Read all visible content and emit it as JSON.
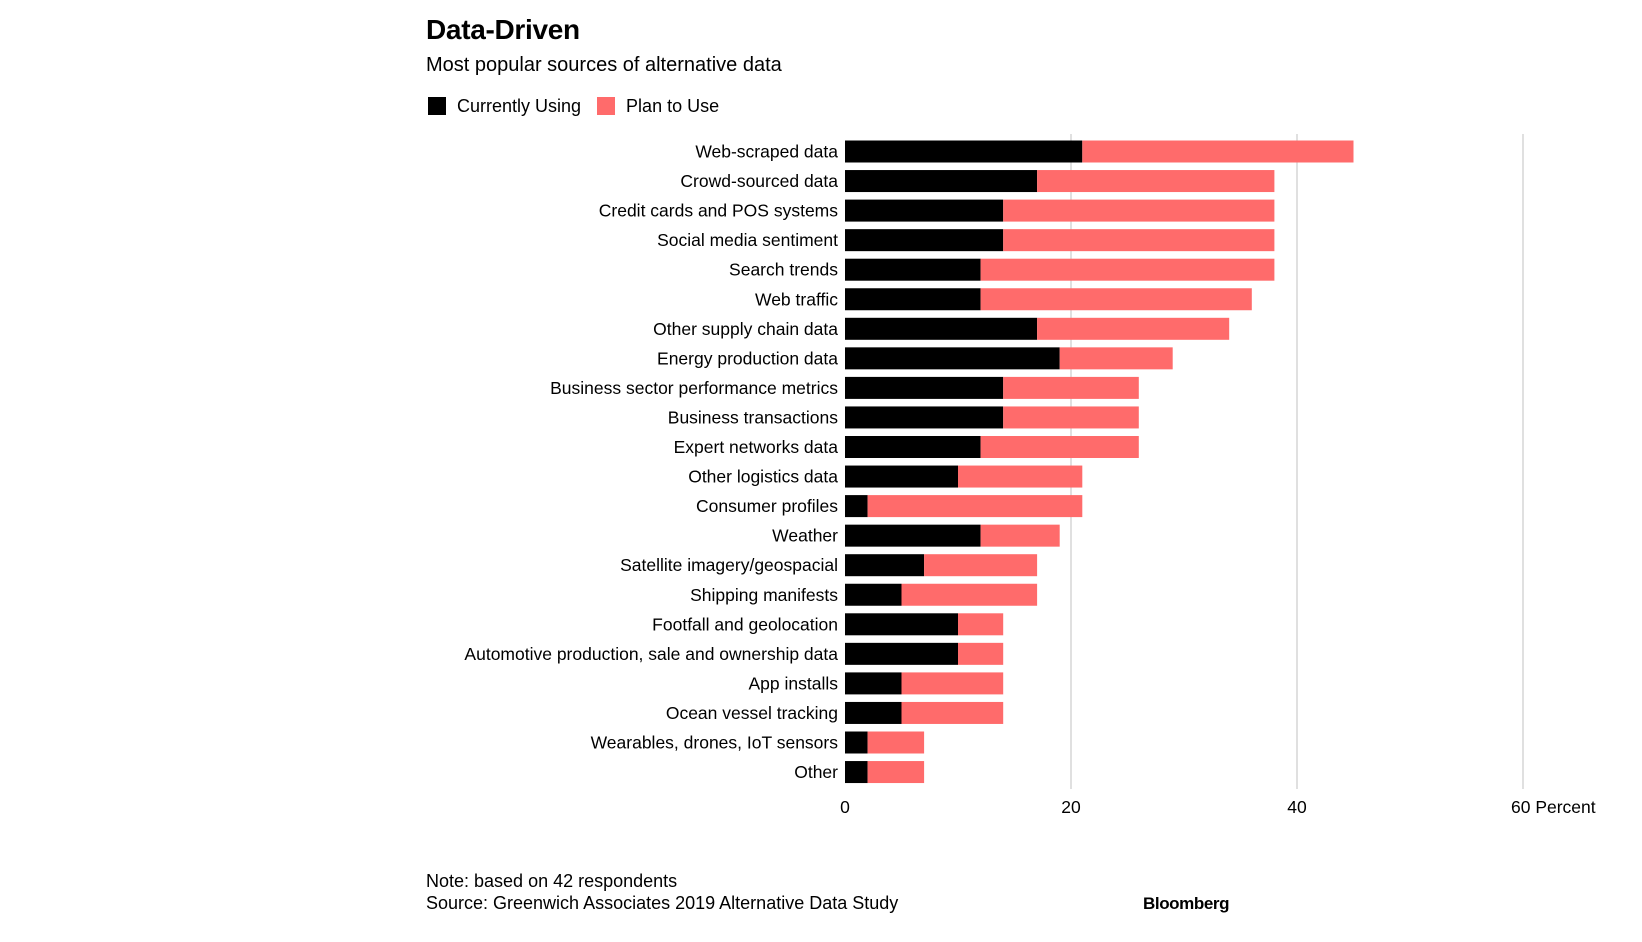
{
  "colors": {
    "currently_using": "#000000",
    "plan_to_use": "#ff6b6b",
    "gridline": "#cccccc",
    "text": "#000000"
  },
  "footer": {
    "note": "Note: based on 42 respondents",
    "source": "Source: Greenwich Associates 2019 Alternative Data Study",
    "brand": "Bloomberg"
  },
  "chart_data": {
    "type": "bar",
    "orientation": "horizontal",
    "stacked": true,
    "title": "Data-Driven",
    "subtitle": "Most popular sources of alternative data",
    "xlabel": "Percent",
    "ylabel": "",
    "xlim": [
      0,
      60
    ],
    "xticks": [
      0,
      20,
      40,
      60
    ],
    "x_unit_label": "Percent",
    "grid": true,
    "legend_position": "top-left",
    "categories": [
      "Web-scraped data",
      "Crowd-sourced data",
      "Credit cards and POS systems",
      "Social media sentiment",
      "Search trends",
      "Web traffic",
      "Other supply chain data",
      "Energy production data",
      "Business sector performance metrics",
      "Business transactions",
      "Expert networks data",
      "Other logistics data",
      "Consumer profiles",
      "Weather",
      "Satellite imagery/geospacial",
      "Shipping manifests",
      "Footfall and geolocation",
      "Automotive production, sale and ownership data",
      "App installs",
      "Ocean vessel tracking",
      "Wearables, drones, IoT sensors",
      "Other"
    ],
    "series": [
      {
        "name": "Currently Using",
        "values": [
          21,
          17,
          14,
          14,
          12,
          12,
          17,
          19,
          14,
          14,
          12,
          10,
          2,
          12,
          7,
          5,
          10,
          10,
          5,
          5,
          2,
          2
        ]
      },
      {
        "name": "Plan to Use",
        "values": [
          24,
          21,
          24,
          24,
          26,
          24,
          17,
          10,
          12,
          12,
          14,
          11,
          19,
          7,
          10,
          12,
          4,
          4,
          9,
          9,
          5,
          5
        ]
      }
    ]
  }
}
